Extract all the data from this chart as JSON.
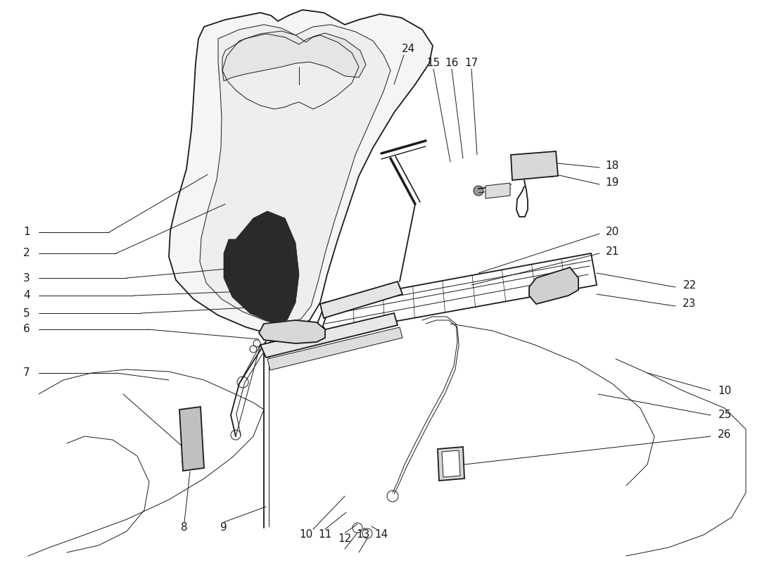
{
  "bg_color": "#ffffff",
  "line_color": "#1a1a1a",
  "lw_main": 1.3,
  "lw_thin": 0.7,
  "lw_thick": 2.2,
  "label_fontsize": 11
}
